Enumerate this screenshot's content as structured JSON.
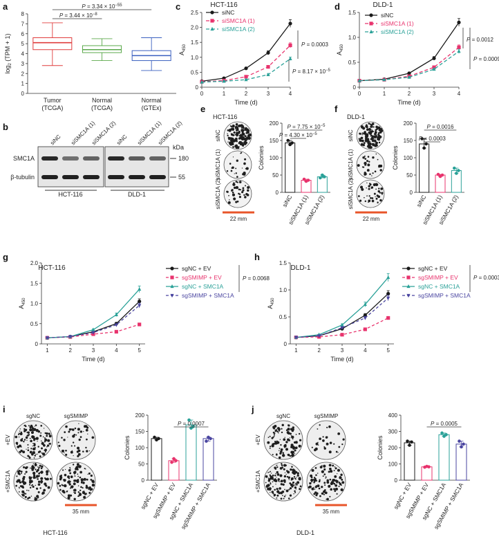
{
  "panels": {
    "a": "a",
    "b": "b",
    "c": "c",
    "d": "d",
    "e": "e",
    "f": "f",
    "g": "g",
    "h": "h",
    "i": "i",
    "j": "j"
  },
  "colors": {
    "black": "#1a1a1a",
    "red": "#e8336d",
    "teal": "#2aa198",
    "purple": "#4a45a0",
    "box_tumor": "#e03c3c",
    "box_normal": "#5aa84a",
    "box_gtex": "#3a5fbf",
    "scale_bar": "#e8552a",
    "gray_err": "#888888"
  },
  "chart_data": [
    {
      "id": "a",
      "type": "box",
      "ylabel": "log2 (TPM + 1)",
      "ylim": [
        0,
        8
      ],
      "yticks": [
        "0",
        "1",
        "2",
        "3",
        "4",
        "5",
        "6",
        "7",
        "8"
      ],
      "categories": [
        [
          "Tumor",
          "(TCGA)"
        ],
        [
          "Normal",
          "(TCGA)"
        ],
        [
          "Normal",
          "(GTEx)"
        ]
      ],
      "boxes": [
        {
          "min": 2.8,
          "q1": 4.4,
          "median": 5.1,
          "q3": 5.6,
          "max": 7.1,
          "color": "#e03c3c"
        },
        {
          "min": 3.3,
          "q1": 4.1,
          "median": 4.4,
          "q3": 4.8,
          "max": 5.5,
          "color": "#5aa84a"
        },
        {
          "min": 2.3,
          "q1": 3.3,
          "median": 3.8,
          "q3": 4.3,
          "max": 5.6,
          "color": "#3a5fbf"
        }
      ],
      "p_values": [
        {
          "text": "P = 3.34 × 10",
          "sup": "−55",
          "from": 0,
          "to": 2
        },
        {
          "text": "P = 3.44 × 10",
          "sup": "−8",
          "from": 0,
          "to": 1
        }
      ]
    },
    {
      "id": "c",
      "type": "line",
      "title": "HCT-116",
      "xlabel": "Time (d)",
      "ylabel": "A450",
      "x": [
        0,
        1,
        2,
        3,
        4
      ],
      "xlim": [
        0,
        4
      ],
      "ylim": [
        0,
        2.5
      ],
      "yticks": [
        "0",
        "0.5",
        "1.0",
        "1.5",
        "2.0",
        "2.5"
      ],
      "series": [
        {
          "name": "siNC",
          "values": [
            0.2,
            0.3,
            0.63,
            1.15,
            2.13
          ],
          "color": "#1a1a1a",
          "dash": "",
          "marker": "circle"
        },
        {
          "name": "siSMC1A (1)",
          "values": [
            0.18,
            0.22,
            0.35,
            0.68,
            1.4
          ],
          "color": "#e8336d",
          "dash": "5,3",
          "marker": "square"
        },
        {
          "name": "siSMC1A (2)",
          "values": [
            0.17,
            0.2,
            0.25,
            0.42,
            0.95
          ],
          "color": "#2aa198",
          "dash": "5,3",
          "marker": "triangle"
        }
      ],
      "p_values": [
        {
          "text": "P = 0.0003"
        },
        {
          "text": "P = 8.17 × 10",
          "sup": "−5"
        }
      ]
    },
    {
      "id": "d",
      "type": "line",
      "title": "DLD-1",
      "xlabel": "Time (d)",
      "ylabel": "A450",
      "x": [
        0,
        1,
        2,
        3,
        4
      ],
      "xlim": [
        0,
        4
      ],
      "ylim": [
        0,
        1.5
      ],
      "yticks": [
        "0",
        "0.5",
        "1.0",
        "1.5"
      ],
      "series": [
        {
          "name": "siNC",
          "values": [
            0.13,
            0.16,
            0.28,
            0.58,
            1.3
          ],
          "color": "#1a1a1a",
          "dash": "",
          "marker": "circle"
        },
        {
          "name": "siSMC1A (1)",
          "values": [
            0.13,
            0.15,
            0.22,
            0.4,
            0.8
          ],
          "color": "#e8336d",
          "dash": "5,3",
          "marker": "square"
        },
        {
          "name": "siSMC1A (2)",
          "values": [
            0.13,
            0.15,
            0.2,
            0.36,
            0.72
          ],
          "color": "#2aa198",
          "dash": "5,3",
          "marker": "triangle"
        }
      ],
      "p_values": [
        {
          "text": "P = 0.0012"
        },
        {
          "text": "P = 0.0009"
        }
      ]
    },
    {
      "id": "e",
      "type": "bar",
      "ylabel": "Colonies",
      "categories": [
        "siNC",
        "siSMC1A (1)",
        "siSMC1A (2)"
      ],
      "values": [
        143,
        35,
        45
      ],
      "ylim": [
        0,
        200
      ],
      "yticks": [
        "0",
        "50",
        "100",
        "150",
        "200"
      ],
      "colors": [
        "#1a1a1a",
        "#e8336d",
        "#2aa198"
      ],
      "points": [
        [
          150,
          138,
          143
        ],
        [
          38,
          32,
          35
        ],
        [
          42,
          50,
          45
        ]
      ],
      "p_values": [
        {
          "text": "P = 7.75 × 10",
          "sup": "−5",
          "from": 0,
          "to": 2
        },
        {
          "text": "P = 4.30 × 10",
          "sup": "−5",
          "from": 0,
          "to": 1
        }
      ]
    },
    {
      "id": "f",
      "type": "bar",
      "ylabel": "Colonies",
      "categories": [
        "siNC",
        "siSMC1A (1)",
        "siSMC1A (2)"
      ],
      "values": [
        140,
        50,
        63
      ],
      "ylim": [
        0,
        200
      ],
      "yticks": [
        "0",
        "50",
        "100",
        "150",
        "200"
      ],
      "colors": [
        "#1a1a1a",
        "#e8336d",
        "#2aa198"
      ],
      "points": [
        [
          155,
          128,
          140
        ],
        [
          52,
          46,
          50
        ],
        [
          70,
          55,
          63
        ]
      ],
      "p_values": [
        {
          "text": "P = 0.0016",
          "from": 0,
          "to": 2
        },
        {
          "text": "P = 0.0003",
          "from": 0,
          "to": 1
        }
      ]
    },
    {
      "id": "g",
      "type": "line",
      "title": "HCT-116",
      "xlabel": "Time (d)",
      "ylabel": "A450",
      "x": [
        1,
        2,
        3,
        4,
        5
      ],
      "xlim": [
        0.75,
        5.25
      ],
      "ylim": [
        0,
        2.0
      ],
      "yticks": [
        "0",
        "0.5",
        "1.0",
        "1.5",
        "2.0"
      ],
      "series": [
        {
          "name": "sgNC + EV",
          "values": [
            0.15,
            0.18,
            0.3,
            0.5,
            1.05
          ],
          "color": "#1a1a1a",
          "dash": "",
          "marker": "circle"
        },
        {
          "name": "sgSMIMP + EV",
          "values": [
            0.15,
            0.17,
            0.24,
            0.3,
            0.48
          ],
          "color": "#e8336d",
          "dash": "4,3",
          "marker": "square"
        },
        {
          "name": "sgNC + SMC1A",
          "values": [
            0.15,
            0.18,
            0.35,
            0.72,
            1.35
          ],
          "color": "#2aa198",
          "dash": "",
          "marker": "triangle"
        },
        {
          "name": "sgSMIMP + SMC1A",
          "values": [
            0.15,
            0.18,
            0.28,
            0.47,
            0.95
          ],
          "color": "#4a45a0",
          "dash": "4,3",
          "marker": "triangle-down"
        }
      ],
      "p_values": [
        {
          "text": "P = 0.0068"
        }
      ]
    },
    {
      "id": "h",
      "type": "line",
      "title": "DLD-1",
      "xlabel": "Time (d)",
      "ylabel": "A450",
      "x": [
        1,
        2,
        3,
        4,
        5
      ],
      "xlim": [
        0.75,
        5.25
      ],
      "ylim": [
        0,
        1.5
      ],
      "yticks": [
        "0",
        "0.5",
        "1.0",
        "1.5"
      ],
      "series": [
        {
          "name": "sgNC + EV",
          "values": [
            0.12,
            0.15,
            0.28,
            0.53,
            0.93
          ],
          "color": "#1a1a1a",
          "dash": "",
          "marker": "circle"
        },
        {
          "name": "sgSMIMP + EV",
          "values": [
            0.12,
            0.13,
            0.17,
            0.27,
            0.48
          ],
          "color": "#e8336d",
          "dash": "4,3",
          "marker": "square"
        },
        {
          "name": "sgNC + SMC1A",
          "values": [
            0.12,
            0.17,
            0.35,
            0.73,
            1.23
          ],
          "color": "#2aa198",
          "dash": "",
          "marker": "triangle"
        },
        {
          "name": "sgSMIMP + SMC1A",
          "values": [
            0.12,
            0.15,
            0.3,
            0.48,
            0.85
          ],
          "color": "#4a45a0",
          "dash": "4,3",
          "marker": "triangle-down"
        }
      ],
      "p_values": [
        {
          "text": "P = 0.0003"
        }
      ]
    },
    {
      "id": "i",
      "type": "bar",
      "ylabel": "Colonies",
      "categories": [
        "sgNC + EV",
        "sgSMIMP + EV",
        "sgNC + SMC1A",
        "sgSMIMP + SMC1A"
      ],
      "values": [
        128,
        60,
        170,
        128
      ],
      "ylim": [
        0,
        200
      ],
      "yticks": [
        "0",
        "50",
        "100",
        "150",
        "200"
      ],
      "colors": [
        "#1a1a1a",
        "#e8336d",
        "#2aa198",
        "#4a45a0"
      ],
      "points": [
        [
          132,
          124,
          128
        ],
        [
          55,
          66,
          60
        ],
        [
          185,
          160,
          165
        ],
        [
          120,
          132,
          128
        ]
      ],
      "p_values": [
        {
          "text": "P = 0.0007",
          "from": 1,
          "to": 3
        }
      ]
    },
    {
      "id": "j",
      "type": "bar",
      "ylabel": "Colonies",
      "categories": [
        "sgNC + EV",
        "sgSMIMP + EV",
        "sgNC + SMC1A",
        "sgSMIMP + SMC1A"
      ],
      "values": [
        230,
        82,
        280,
        222
      ],
      "ylim": [
        0,
        400
      ],
      "yticks": [
        "0",
        "100",
        "200",
        "300",
        "400"
      ],
      "colors": [
        "#1a1a1a",
        "#e8336d",
        "#2aa198",
        "#4a45a0"
      ],
      "points": [
        [
          240,
          215,
          235
        ],
        [
          80,
          85,
          82
        ],
        [
          290,
          270,
          280
        ],
        [
          240,
          205,
          222
        ]
      ],
      "p_values": [
        {
          "text": "P = 0.0005",
          "from": 1,
          "to": 3
        }
      ]
    }
  ],
  "western": {
    "lanes": [
      "siNC",
      "siSMC1A (1)",
      "siSMC1A (2)",
      "siNC",
      "siSMC1A (1)",
      "siSMC1A (2)"
    ],
    "proteins": [
      "SMC1A",
      "β-tubulin"
    ],
    "kda_label": "kDa",
    "kda_values": [
      "180",
      "55"
    ],
    "cells": [
      "HCT-116",
      "DLD-1"
    ],
    "smc1a_intensity": [
      1.0,
      0.45,
      0.55,
      1.0,
      0.6,
      0.55
    ]
  },
  "colony_e": {
    "labels": [
      "siNC",
      "siSMC1A (1)",
      "siSMC1A (2)"
    ],
    "scale": "22 mm",
    "density": [
      1.0,
      0.15,
      0.25
    ]
  },
  "colony_f": {
    "labels": [
      "siNC",
      "siSMC1A (1)",
      "siSMC1A (2)"
    ],
    "scale": "22 mm",
    "density": [
      0.9,
      0.2,
      0.3
    ]
  },
  "colony_i": {
    "cols": [
      "sgNC",
      "sgSMIMP"
    ],
    "rows": [
      "+EV",
      "+SMC1A"
    ],
    "scale": "35 mm",
    "cell": "HCT-116",
    "density": [
      [
        0.85,
        0.35
      ],
      [
        0.95,
        0.8
      ]
    ]
  },
  "colony_j": {
    "cols": [
      "sgNC",
      "sgSMIMP"
    ],
    "rows": [
      "+EV",
      "+SMC1A"
    ],
    "scale": "35 mm",
    "cell": "DLD-1",
    "density": [
      [
        0.7,
        0.2
      ],
      [
        0.95,
        0.7
      ]
    ]
  }
}
